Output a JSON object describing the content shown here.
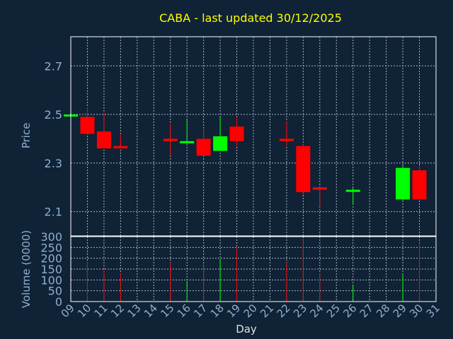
{
  "chart_data": {
    "type": "candlestick",
    "title": "CABA - last updated 30/12/2025",
    "xlabel": "Day",
    "ylabel": "Price",
    "volume_label": "Volume (0000)",
    "grid": true,
    "price_ylim": [
      2.0,
      2.82
    ],
    "volume_ylim": [
      0,
      300
    ],
    "price_ticks": [
      2.1,
      2.3,
      2.5,
      2.7
    ],
    "volume_ticks": [
      0,
      50,
      100,
      150,
      200,
      250,
      300
    ],
    "x_ticks": [
      "09",
      "10",
      "11",
      "12",
      "13",
      "14",
      "15",
      "16",
      "17",
      "18",
      "19",
      "20",
      "21",
      "22",
      "23",
      "24",
      "25",
      "26",
      "27",
      "28",
      "29",
      "30",
      "31"
    ],
    "colors": {
      "up": "#00ff00",
      "down": "#ff0000",
      "title": "#ffff00",
      "axis_text": "#8fb0d0",
      "grid": "#aab4c0"
    },
    "candles": [
      {
        "day": 9,
        "open": 2.5,
        "high": 2.5,
        "low": 2.5,
        "close": 2.5,
        "volume": 0
      },
      {
        "day": 10,
        "open": 2.49,
        "high": 2.53,
        "low": 2.42,
        "close": 2.42,
        "volume": 185
      },
      {
        "day": 11,
        "open": 2.43,
        "high": 2.51,
        "low": 2.36,
        "close": 2.36,
        "volume": 150
      },
      {
        "day": 12,
        "open": 2.37,
        "high": 2.42,
        "low": 2.36,
        "close": 2.36,
        "volume": 130
      },
      {
        "day": 15,
        "open": 2.4,
        "high": 2.46,
        "low": 2.33,
        "close": 2.39,
        "volume": 180
      },
      {
        "day": 16,
        "open": 2.39,
        "high": 2.48,
        "low": 2.38,
        "close": 2.39,
        "volume": 95
      },
      {
        "day": 17,
        "open": 2.4,
        "high": 2.44,
        "low": 2.33,
        "close": 2.33,
        "volume": 165
      },
      {
        "day": 18,
        "open": 2.35,
        "high": 2.49,
        "low": 2.35,
        "close": 2.41,
        "volume": 195
      },
      {
        "day": 19,
        "open": 2.45,
        "high": 2.49,
        "low": 2.37,
        "close": 2.39,
        "volume": 250
      },
      {
        "day": 22,
        "open": 2.4,
        "high": 2.47,
        "low": 2.37,
        "close": 2.39,
        "volume": 180
      },
      {
        "day": 23,
        "open": 2.37,
        "high": 2.38,
        "low": 2.17,
        "close": 2.18,
        "volume": 290
      },
      {
        "day": 24,
        "open": 2.2,
        "high": 2.2,
        "low": 2.12,
        "close": 2.19,
        "volume": 130
      },
      {
        "day": 26,
        "open": 2.19,
        "high": 2.2,
        "low": 2.13,
        "close": 2.19,
        "volume": 75
      },
      {
        "day": 29,
        "open": 2.15,
        "high": 2.29,
        "low": 2.14,
        "close": 2.28,
        "volume": 130
      },
      {
        "day": 30,
        "open": 2.27,
        "high": 2.29,
        "low": 2.15,
        "close": 2.15,
        "volume": 270
      }
    ]
  }
}
